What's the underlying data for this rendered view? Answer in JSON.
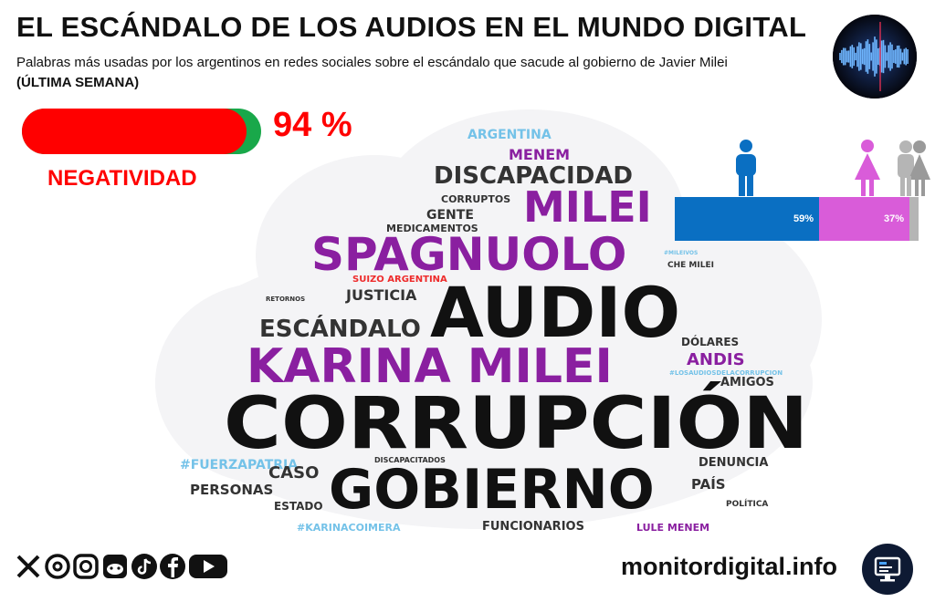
{
  "header": {
    "title": "EL ESCÁNDALO DE LOS AUDIOS EN EL MUNDO DIGITAL",
    "subtitle": "Palabras más usadas por los argentinos en redes sociales sobre el escándalo que sacude al gobierno de Javier Milei",
    "subtitle_emphasis": "(ÚLTIMA SEMANA)"
  },
  "sentiment": {
    "percent_text": "94 %",
    "negative_fraction": 0.94,
    "label": "NEGATIVIDAD",
    "colors": {
      "negative": "#ff0000",
      "remainder": "#19a84a"
    }
  },
  "gender": {
    "male_label": "59%",
    "female_label": "37%",
    "male_fraction": 0.59,
    "female_fraction": 0.37,
    "other_fraction": 0.04,
    "colors": {
      "male": "#0a6fc2",
      "female": "#d95cd9",
      "other": "#b5b5b5"
    },
    "icons": [
      "male-person-icon",
      "female-person-icon",
      "group-person-icon"
    ]
  },
  "wordcloud": {
    "colors": {
      "black": "#111111",
      "purple": "#8a1fa0",
      "light_blue": "#74c2e8",
      "red": "#ee2b2b",
      "gray": "#333333"
    },
    "words": [
      {
        "text": "ARGENTINA",
        "color": "light_blue"
      },
      {
        "text": "MENEM",
        "color": "purple"
      },
      {
        "text": "DISCAPACIDAD",
        "color": "gray"
      },
      {
        "text": "CORRUPTOS",
        "color": "gray"
      },
      {
        "text": "MILEI",
        "color": "purple"
      },
      {
        "text": "GENTE",
        "color": "gray"
      },
      {
        "text": "MEDICAMENTOS",
        "color": "gray"
      },
      {
        "text": "SPAGNUOLO",
        "color": "purple"
      },
      {
        "text": "#MILEIVOS",
        "color": "light_blue"
      },
      {
        "text": "CHE MILEI",
        "color": "gray"
      },
      {
        "text": "SUIZO ARGENTINA",
        "color": "red"
      },
      {
        "text": "JUSTICIA",
        "color": "gray"
      },
      {
        "text": "RETORNOS",
        "color": "gray"
      },
      {
        "text": "AUDIO",
        "color": "black"
      },
      {
        "text": "ESCÁNDALO",
        "color": "gray"
      },
      {
        "text": "KARINA MILEI",
        "color": "purple"
      },
      {
        "text": "DÓLARES",
        "color": "gray"
      },
      {
        "text": "ANDIS",
        "color": "purple"
      },
      {
        "text": "#LOSAUDIOSDELACORRUPCION",
        "color": "light_blue"
      },
      {
        "text": "AMIGOS",
        "color": "gray"
      },
      {
        "text": "CORRUPCIÓN",
        "color": "black"
      },
      {
        "text": "#FUERZAPATRIA",
        "color": "light_blue"
      },
      {
        "text": "DISCAPACITADOS",
        "color": "gray"
      },
      {
        "text": "DENUNCIA",
        "color": "gray"
      },
      {
        "text": "CASO",
        "color": "gray"
      },
      {
        "text": "GOBIERNO",
        "color": "black"
      },
      {
        "text": "PERSONAS",
        "color": "gray"
      },
      {
        "text": "PAÍS",
        "color": "gray"
      },
      {
        "text": "ESTADO",
        "color": "gray"
      },
      {
        "text": "POLÍTICA",
        "color": "gray"
      },
      {
        "text": "#KARINACOIMERA",
        "color": "light_blue"
      },
      {
        "text": "FUNCIONARIOS",
        "color": "gray"
      },
      {
        "text": "LULE MENEM",
        "color": "purple"
      }
    ]
  },
  "footer": {
    "site": "monitordigital.info",
    "social_icons": [
      "x-icon",
      "threads-icon",
      "instagram-icon",
      "reddit-icon",
      "tiktok-icon",
      "facebook-icon",
      "youtube-icon"
    ],
    "badge_icon": "monitor-icon"
  }
}
